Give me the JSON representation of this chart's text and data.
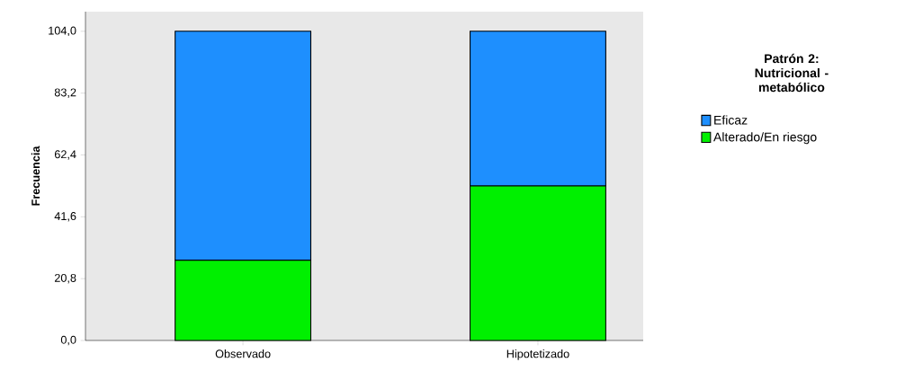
{
  "chart_data": {
    "type": "bar",
    "stacked": true,
    "categories": [
      "Observado",
      "Hipotetizado"
    ],
    "ylabel": "Frecuencia",
    "legend_title": "Patrón 2: Nutricional - metabólico",
    "legend": "right",
    "series": [
      {
        "name": "Alterado/En riesgo",
        "color": "#00f000",
        "values": [
          27,
          52
        ]
      },
      {
        "name": "Eficaz",
        "color": "#1e8ffe",
        "values": [
          77,
          52
        ]
      }
    ],
    "ylim": [
      0,
      110.6
    ],
    "yticks": [
      {
        "value": 0,
        "label": "0,0"
      },
      {
        "value": 20.8,
        "label": "20,8"
      },
      {
        "value": 41.6,
        "label": "41,6"
      },
      {
        "value": 62.4,
        "label": "62,4"
      },
      {
        "value": 83.2,
        "label": "83,2"
      },
      {
        "value": 104,
        "label": "104,0"
      }
    ],
    "grid": false
  }
}
